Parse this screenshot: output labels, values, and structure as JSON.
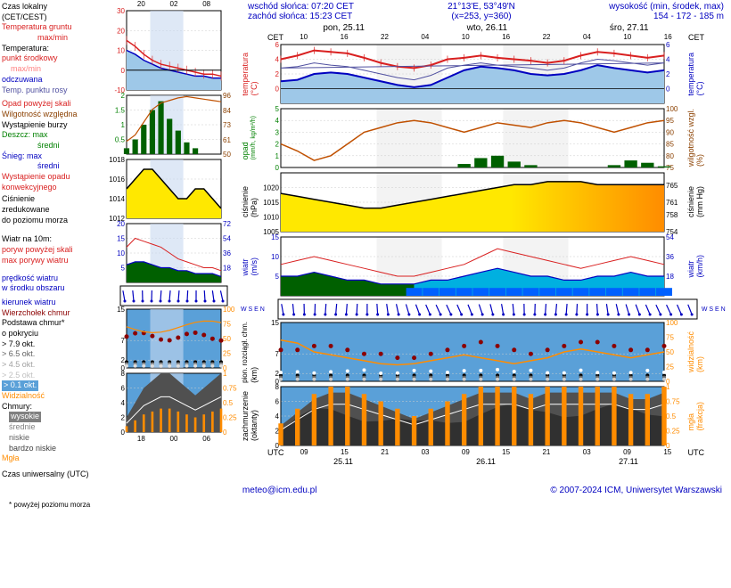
{
  "header": {
    "sunrise": "wschód słońca: 07:20 CET",
    "sunset": "zachód słońca: 15:23 CET",
    "coords": "21°13'E, 53°49'N",
    "xy": "(x=253, y=360)",
    "elevation": "wysokość (min, środek, max)",
    "elev_vals": "154 - 172 - 185 m"
  },
  "dates": {
    "d1": "pon, 25.11",
    "d2": "wto, 26.11",
    "d3": "śro, 27.11",
    "cet_l": "CET",
    "cet_r": "CET"
  },
  "left_labels": {
    "czas_lokalny": "Czas lokalny",
    "cet_cest": "(CET/CEST)",
    "temp_gruntu": "Temperatura gruntu",
    "maxmin": "max/min",
    "temperatura": "Temperatura:",
    "punkt_srodkowy": "punkt środkowy",
    "maxmin2": "max/min",
    "odczuwana": "odczuwana",
    "temp_rosy": "Temp. punktu rosy",
    "opad_skali": "Opad powyżej skali",
    "wilgotnosc": "Wilgotność względna",
    "burza": "Wystąpienie burzy",
    "deszcz": "Deszcz: max",
    "sredni": "średni",
    "snieg": "Śnieg:   max",
    "sredni2": "średni",
    "opad_konw": "Wystąpienie opadu",
    "konw2": "konwekcyjnego",
    "cisnienie": "Ciśnienie",
    "zred": "zredukowane",
    "poziom": "do poziomu morza",
    "wiatr10m": "Wiatr na 10m:",
    "poryw_skali": "poryw powyżej skali",
    "max_porywy": "max porywy wiatru",
    "predkosc": "prędkość wiatru",
    "srodek": "w środku obszaru",
    "kierunek": "kierunek wiatru",
    "wierzcholek": "Wierzchołek chmur",
    "podstawa": "Podstawa chmur*",
    "pokrycie": "o pokryciu",
    "okt79": "> 7.9 okt.",
    "okt65": "> 6.5 okt.",
    "okt45": "> 4.5 okt.",
    "okt25": "> 2.5 okt.",
    "okt01": "> 0.1 okt.",
    "widzialnosc": "Widzialność",
    "chmury": "Chmury:",
    "wysokie": "wysokie",
    "srednie_ch": "średnie",
    "niskie": "niskie",
    "bardzo_niskie": "bardzo niskie",
    "mgla": "Mgła",
    "czas_utc": "Czas uniwersalny (UTC)"
  },
  "ylabels": {
    "temp": "temperatura",
    "temp_unit": "(°C)",
    "temp_r": "temperatura",
    "temp_unit_r": "(°C)",
    "opad": "opad",
    "opad_unit": "(mm/h, kg/m²/h)",
    "wilg": "wilgotność wzgl.",
    "wilg_unit": "(%)",
    "cisn": "ciśnienie",
    "cisn_unit": "(hPa)",
    "cisn_r": "ciśnienie",
    "cisn_unit_r": "(mm Hg)",
    "wiatr": "wiatr",
    "wiatr_unit": "(m/s)",
    "wiatr_r": "wiatr",
    "wiatr_unit_r": "(km/h)",
    "wse_l": "W S E N",
    "wse_r": "W S E N",
    "pion": "pion. rozciągł. chm.",
    "pion_unit": "(km)",
    "widz": "widzialność",
    "widz_unit": "(km)",
    "zachm": "zachmurzenie",
    "zachm_unit": "(oktanty)",
    "mgla_r": "mgła",
    "mgla_unit": "(frakcja)"
  },
  "colors": {
    "red": "#d92020",
    "darkred": "#8b0000",
    "blue": "#0000c0",
    "lightblue": "#9ec8e8",
    "skyblue": "#5aa0d8",
    "darkblue": "#000080",
    "green": "#008000",
    "darkgreen": "#006000",
    "orange": "#ff8c00",
    "yellow": "#ffe800",
    "olive": "#808000",
    "gray": "#808080",
    "darkgray": "#404040",
    "lightgray": "#c0c0c0",
    "purple": "#5050a0",
    "black": "#000000",
    "white": "#ffffff",
    "cyan": "#00b0e0",
    "brightblue": "#0060ff"
  },
  "temp_chart": {
    "ylim": [
      -2,
      6
    ],
    "yticks": [
      0,
      2,
      4,
      6
    ],
    "red_line": [
      4.0,
      4.5,
      5.2,
      5.0,
      4.8,
      4.2,
      3.5,
      3.0,
      2.8,
      3.2,
      4.0,
      4.2,
      4.5,
      4.2,
      4.0,
      3.8,
      3.5,
      3.8,
      4.5,
      5.0,
      4.8,
      4.5,
      4.2,
      4.5
    ],
    "blue_line": [
      1.0,
      1.2,
      2.0,
      2.2,
      2.0,
      1.5,
      1.0,
      0.5,
      0.2,
      0.5,
      1.5,
      2.5,
      3.0,
      2.8,
      2.5,
      2.0,
      1.8,
      2.0,
      2.5,
      3.2,
      2.8,
      2.5,
      2.2,
      2.5
    ],
    "purple_line": [
      2.8,
      3.0,
      3.5,
      3.2,
      3.0,
      2.5,
      2.0,
      1.5,
      1.2,
      1.8,
      2.8,
      3.2,
      3.5,
      3.2,
      3.0,
      2.8,
      2.5,
      2.8,
      3.5,
      4.0,
      3.8,
      3.5,
      3.2,
      3.5
    ]
  },
  "mid_temp": {
    "ylim": [
      -10,
      30
    ],
    "yticks": [
      -10,
      0,
      10,
      20,
      30
    ],
    "xticks": [
      "20",
      "02",
      "08"
    ],
    "red": [
      15,
      12,
      8,
      5,
      3,
      2,
      1,
      0,
      -1,
      -2,
      -2,
      -3
    ],
    "blue": [
      10,
      8,
      5,
      3,
      1,
      0,
      -1,
      -2,
      -3,
      -3,
      -4,
      -4
    ]
  },
  "precip_chart": {
    "ylim": [
      0,
      5
    ],
    "yticks": [
      0,
      1,
      2,
      3,
      4,
      5
    ],
    "ylim_r": [
      75,
      100
    ],
    "yticks_r": [
      75,
      80,
      85,
      90,
      95,
      100
    ],
    "humidity": [
      85,
      82,
      78,
      80,
      85,
      90,
      92,
      94,
      95,
      94,
      92,
      90,
      92,
      94,
      93,
      92,
      94,
      95,
      94,
      92,
      90,
      92,
      94,
      95
    ],
    "bars": [
      0,
      0,
      0,
      0,
      0,
      0,
      0,
      0,
      0,
      0,
      0,
      0.3,
      0.8,
      1.0,
      0.5,
      0.2,
      0,
      0,
      0,
      0,
      0.2,
      0.6,
      0.4,
      0.1
    ]
  },
  "mid_precip": {
    "ylim": [
      0,
      2
    ],
    "yticks": [
      0.5,
      1.0,
      1.5,
      2.0
    ],
    "ylim_r": [
      50,
      96
    ],
    "yticks_r": [
      50,
      61,
      73,
      84,
      96
    ],
    "humidity": [
      60,
      65,
      75,
      85,
      90,
      92,
      94,
      95,
      94,
      93,
      92,
      91
    ],
    "bars": [
      0.2,
      0.5,
      1.0,
      1.5,
      1.8,
      1.2,
      0.8,
      0.4,
      0.2,
      0,
      0,
      0
    ]
  },
  "pressure_chart": {
    "ylim": [
      1005,
      1025
    ],
    "yticks": [
      1005,
      1010,
      1015,
      1020
    ],
    "ylim_r": [
      754,
      768
    ],
    "yticks_r": [
      754,
      758,
      761,
      765
    ],
    "line": [
      1018,
      1017,
      1016,
      1015,
      1014,
      1013,
      1013,
      1014,
      1015,
      1016,
      1017,
      1018,
      1019,
      1020,
      1021,
      1021,
      1022,
      1022,
      1022,
      1021,
      1021,
      1021,
      1021,
      1021
    ]
  },
  "mid_pressure": {
    "ylim": [
      1012,
      1018
    ],
    "yticks": [
      1012,
      1014,
      1016,
      1018
    ],
    "line": [
      1015,
      1016,
      1017,
      1017,
      1016,
      1015,
      1014,
      1014,
      1015,
      1015,
      1014,
      1013
    ]
  },
  "wind_chart": {
    "ylim": [
      0,
      15
    ],
    "yticks": [
      5,
      10,
      15
    ],
    "ylim_r": [
      0,
      54
    ],
    "yticks_r": [
      18,
      36,
      54
    ],
    "gust": [
      8,
      9,
      10,
      9,
      8,
      7,
      6,
      5,
      5,
      6,
      7,
      8,
      10,
      12,
      11,
      10,
      9,
      8,
      7,
      8,
      9,
      10,
      9,
      8
    ],
    "speed": [
      5,
      5,
      6,
      5,
      4,
      4,
      3,
      3,
      3,
      4,
      4,
      5,
      6,
      7,
      6,
      5,
      5,
      4,
      4,
      5,
      5,
      6,
      5,
      5
    ]
  },
  "mid_wind": {
    "ylim": [
      0,
      20
    ],
    "yticks": [
      5,
      10,
      15,
      20
    ],
    "ylim_r": [
      0,
      72
    ],
    "yticks_r": [
      18,
      36,
      54,
      72
    ],
    "gust": [
      12,
      15,
      14,
      13,
      12,
      10,
      8,
      7,
      6,
      5,
      5,
      4
    ],
    "speed": [
      6,
      7,
      7,
      6,
      5,
      5,
      4,
      4,
      3,
      3,
      3,
      2
    ]
  },
  "clouds_chart": {
    "ylim": [
      0,
      15
    ],
    "yticks": [
      0.0,
      2.0,
      7.0,
      15.0
    ],
    "ylim_r": [
      0,
      100
    ],
    "yticks_r": [
      0,
      25,
      50,
      75,
      100
    ],
    "vis": [
      70,
      65,
      50,
      45,
      40,
      35,
      30,
      28,
      30,
      35,
      40,
      45,
      40,
      35,
      30,
      35,
      40,
      50,
      55,
      50,
      45,
      40,
      45,
      50
    ],
    "tops": [
      8,
      8,
      9,
      9,
      8,
      7,
      7,
      6,
      6,
      7,
      8,
      9,
      10,
      9,
      8,
      7,
      8,
      9,
      10,
      10,
      9,
      8,
      8,
      9
    ]
  },
  "mid_clouds": {
    "ylim": [
      0,
      15
    ],
    "yticks": [
      0.0,
      2.0,
      7.0,
      15.0
    ],
    "ylim_r": [
      0,
      100
    ],
    "yticks_r": [
      0,
      25,
      50,
      75,
      100
    ]
  },
  "octa_chart": {
    "ylim": [
      0,
      8
    ],
    "yticks": [
      0,
      2,
      4,
      6,
      8
    ],
    "ylim_r": [
      0,
      1
    ],
    "yticks_r": [
      0.0,
      0.25,
      0.5,
      0.75,
      1.0
    ],
    "bars": [
      3,
      5,
      7,
      8,
      8,
      7,
      6,
      5,
      4,
      5,
      6,
      7,
      8,
      8,
      8,
      7,
      8,
      8,
      8,
      8,
      8,
      7,
      7,
      8
    ]
  },
  "mid_octa": {
    "ylim": [
      0,
      8
    ],
    "yticks": [
      0,
      2,
      4,
      6,
      8
    ],
    "ylim_r": [
      0,
      1
    ],
    "yticks_r": [
      0.0,
      0.25,
      0.5,
      0.75,
      1.0
    ]
  },
  "time_axis": {
    "main_ticks": [
      "10",
      "16",
      "22",
      "04",
      "10",
      "16",
      "22",
      "04",
      "10",
      "16"
    ],
    "utc_ticks": [
      "09",
      "15",
      "21",
      "03",
      "09",
      "15",
      "21",
      "03",
      "09",
      "15"
    ],
    "utc_dates": [
      "25.11",
      "26.11",
      "27.11"
    ],
    "mid_utc": [
      "18",
      "00",
      "06"
    ],
    "utc_label": "UTC"
  },
  "footer": {
    "url": "meteo@icm.edu.pl",
    "copyright": "© 2007-2024 ICM, Uniwersytet Warszawski",
    "footnote": "* powyżej poziomu morza"
  }
}
